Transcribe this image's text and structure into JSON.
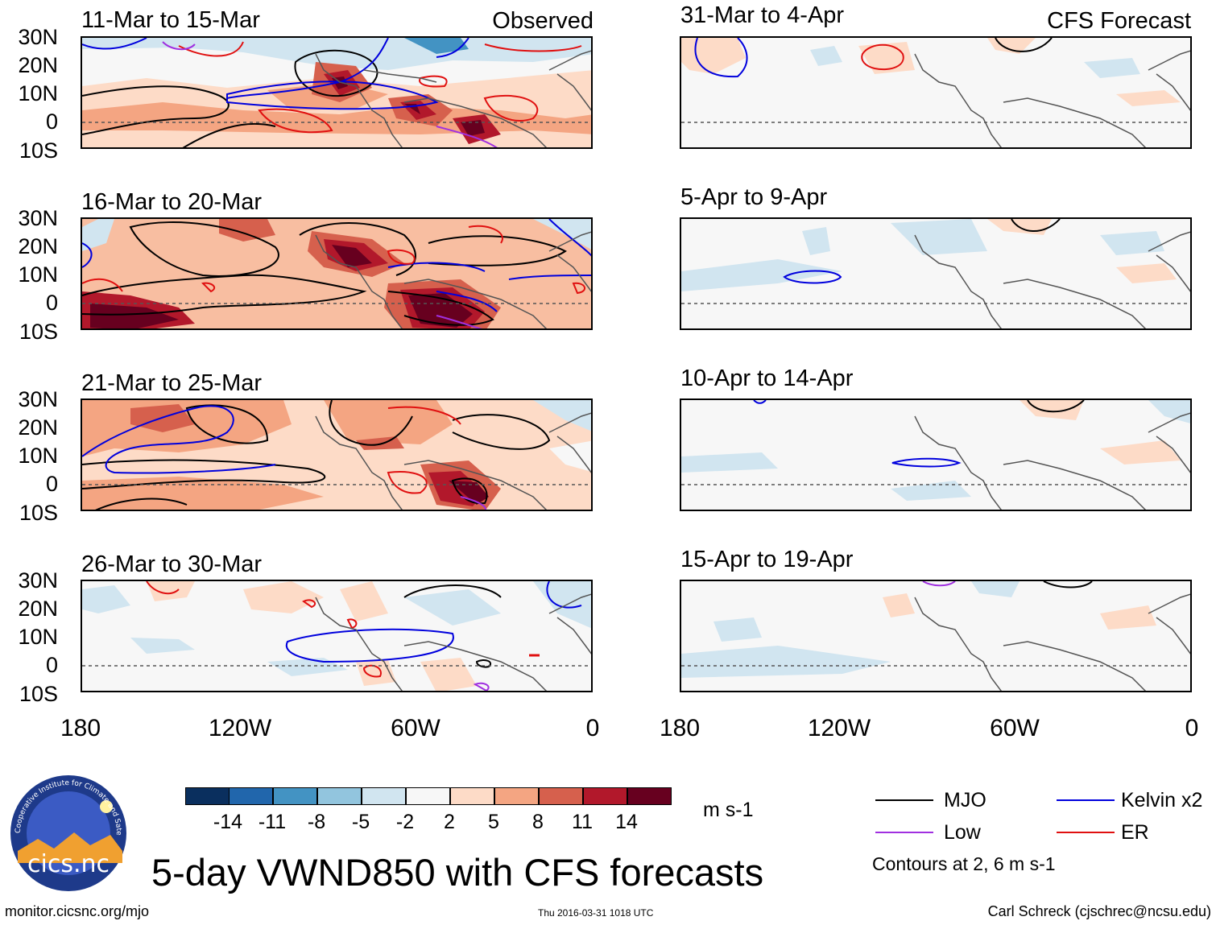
{
  "panels": [
    {
      "title": "11-Mar to 15-Mar",
      "tag": "Observed"
    },
    {
      "title": "16-Mar to 20-Mar",
      "tag": ""
    },
    {
      "title": "21-Mar to 25-Mar",
      "tag": ""
    },
    {
      "title": "26-Mar to 30-Mar",
      "tag": ""
    },
    {
      "title": "31-Mar to 4-Apr",
      "tag": "CFS Forecast"
    },
    {
      "title": "5-Apr to 9-Apr",
      "tag": ""
    },
    {
      "title": "10-Apr to 14-Apr",
      "tag": ""
    },
    {
      "title": "15-Apr to 19-Apr",
      "tag": ""
    }
  ],
  "lat_labels": [
    "30N",
    "20N",
    "10N",
    "0",
    "10S"
  ],
  "lon_labels": [
    "180",
    "120W",
    "60W",
    "0"
  ],
  "colorbar": {
    "unit": "m s-1",
    "labels": [
      "-14",
      "-11",
      "-8",
      "-5",
      "-2",
      "2",
      "5",
      "8",
      "11",
      "14"
    ],
    "colors": [
      "#0a2f5e",
      "#2166ac",
      "#4393c3",
      "#92c5de",
      "#d1e5f0",
      "#f7f7f7",
      "#fddbc7",
      "#f4a582",
      "#d6604d",
      "#b2182b",
      "#67001f"
    ]
  },
  "legend": {
    "items": [
      {
        "label": "MJO",
        "color": "#000000"
      },
      {
        "label": "Kelvin x2",
        "color": "#0000dd"
      },
      {
        "label": "Low",
        "color": "#a030e0"
      },
      {
        "label": "ER",
        "color": "#e01010"
      }
    ],
    "note": "Contours at 2, 6 m s-1"
  },
  "logo_text": "cics.nc",
  "logo_ring_text": "Cooperative Institute for Climate and Satellites",
  "main_title": "5-day VWND850 with CFS forecasts",
  "footer": {
    "url": "monitor.cicsnc.org/mjo",
    "timestamp": "Thu 2016-03-31 1018 UTC",
    "credit": "Carl Schreck (cjschrec@ncsu.edu)"
  }
}
